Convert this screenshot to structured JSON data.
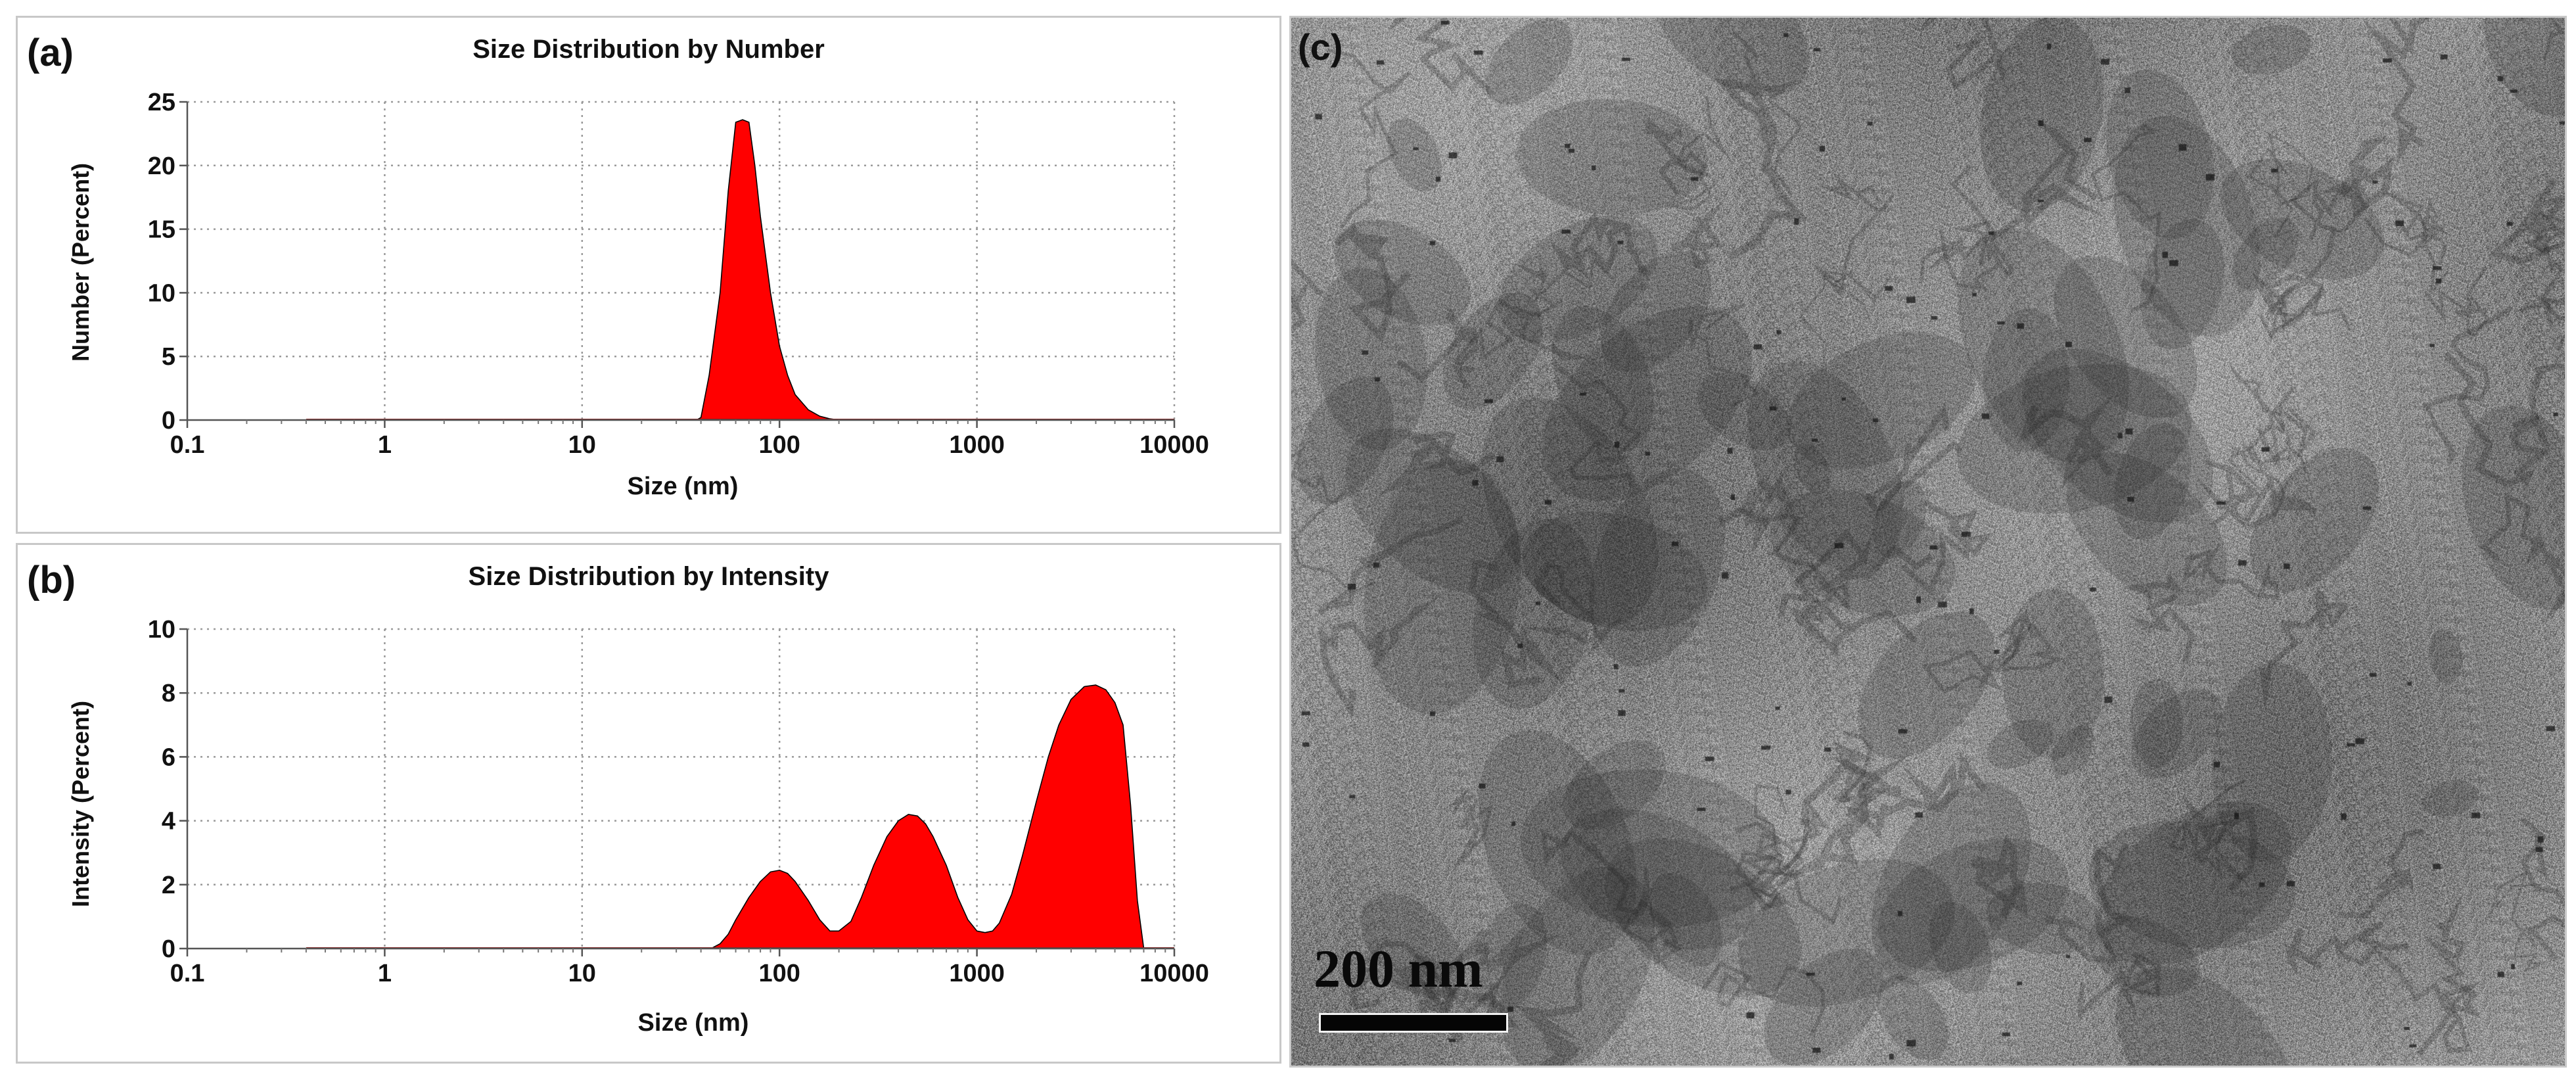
{
  "chart_data": [
    {
      "panel": "(a)",
      "type": "area",
      "title": "Size Distribution by Number",
      "xlabel": "Size (nm)",
      "ylabel": "Number (Percent)",
      "xscale": "log",
      "xlim": [
        0.1,
        10000
      ],
      "ylim": [
        0,
        25
      ],
      "xticks": [
        0.1,
        1,
        10,
        100,
        1000,
        10000
      ],
      "xtick_labels": [
        "0.1",
        "1",
        "10",
        "100",
        "1000",
        "10000"
      ],
      "yticks": [
        0,
        5,
        10,
        15,
        20,
        25
      ],
      "ytick_labels": [
        "0",
        "5",
        "10",
        "15",
        "20",
        "25"
      ],
      "grid": true,
      "fill_color": "#ff0000",
      "x": [
        0.4,
        0.6,
        1,
        2,
        5,
        10,
        20,
        30,
        38,
        40,
        44,
        50,
        55,
        60,
        65,
        70,
        75,
        80,
        90,
        100,
        110,
        120,
        140,
        160,
        180,
        200,
        300,
        1000,
        5000,
        10000
      ],
      "y": [
        0,
        0,
        0,
        0,
        0,
        0,
        0,
        0,
        0,
        0.2,
        3.5,
        10,
        18,
        23.4,
        23.6,
        23.4,
        20,
        16,
        10,
        5.8,
        3.5,
        2,
        0.8,
        0.3,
        0.1,
        0,
        0,
        0,
        0,
        0
      ]
    },
    {
      "panel": "(b)",
      "type": "area",
      "title": "Size Distribution by Intensity",
      "xlabel": "Size (nm)",
      "ylabel": "Intensity (Percent)",
      "xscale": "log",
      "xlim": [
        0.1,
        10000
      ],
      "ylim": [
        0,
        10
      ],
      "xticks": [
        0.1,
        1,
        10,
        100,
        1000,
        10000
      ],
      "xtick_labels": [
        "0.1",
        "1",
        "10",
        "100",
        "1000",
        "10000"
      ],
      "yticks": [
        0,
        2,
        4,
        6,
        8,
        10
      ],
      "ytick_labels": [
        "0",
        "2",
        "4",
        "6",
        "8",
        "10"
      ],
      "grid": true,
      "fill_color": "#ff0000",
      "x": [
        0.4,
        1,
        10,
        30,
        45,
        50,
        55,
        60,
        70,
        80,
        90,
        100,
        110,
        120,
        140,
        160,
        180,
        200,
        230,
        260,
        300,
        350,
        400,
        450,
        500,
        550,
        600,
        700,
        800,
        900,
        1000,
        1100,
        1200,
        1300,
        1500,
        1700,
        2000,
        2300,
        2600,
        3000,
        3500,
        4000,
        4500,
        5000,
        5500,
        6000,
        6500,
        7000
      ],
      "y": [
        0,
        0,
        0,
        0,
        0,
        0.15,
        0.45,
        0.9,
        1.6,
        2.1,
        2.4,
        2.45,
        2.35,
        2.1,
        1.5,
        0.9,
        0.55,
        0.55,
        0.85,
        1.6,
        2.6,
        3.5,
        4.0,
        4.2,
        4.15,
        3.9,
        3.5,
        2.6,
        1.6,
        0.9,
        0.55,
        0.5,
        0.55,
        0.8,
        1.7,
        2.9,
        4.6,
        6.0,
        7.0,
        7.8,
        8.2,
        8.25,
        8.1,
        7.7,
        7.0,
        4.5,
        1.5,
        0
      ]
    }
  ],
  "panel_c": {
    "label": "(c)",
    "scale_bar_text": "200 nm"
  }
}
